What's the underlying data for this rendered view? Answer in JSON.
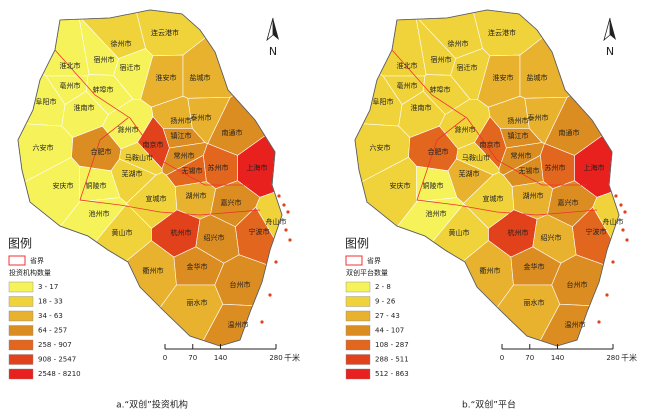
{
  "maps": [
    {
      "caption": "a.“双创”投资机构",
      "north": "N",
      "legend_heading": "图例",
      "boundary": "省界",
      "legend_title": "投资机构数量",
      "classes": [
        {
          "label": "3 - 17",
          "color": "#f6f25a"
        },
        {
          "label": "18 - 33",
          "color": "#f0d33a"
        },
        {
          "label": "34 - 63",
          "color": "#e8b12e"
        },
        {
          "label": "64 - 257",
          "color": "#dc8d22"
        },
        {
          "label": "258 - 907",
          "color": "#e2661e"
        },
        {
          "label": "908 - 2547",
          "color": "#e1411b"
        },
        {
          "label": "2548 - 8210",
          "color": "#e8201e"
        }
      ],
      "scale": {
        "ticks": [
          0,
          70,
          140,
          280
        ],
        "unit": "千米"
      },
      "cities": [
        "连云港市",
        "徐州市",
        "宿迁市",
        "宿州市",
        "淮北市",
        "亳州市",
        "蚌埠市",
        "淮安市",
        "盐城市",
        "阜阳市",
        "淮南市",
        "扬州市",
        "泰州市",
        "南通市",
        "滁州市",
        "六安市",
        "合肥市",
        "南京市",
        "镇江市",
        "常州市",
        "马鞍山市",
        "无锡市",
        "苏州市",
        "上海市",
        "芜湖市",
        "铜陵市",
        "宣城市",
        "安庆市",
        "池州市",
        "湖州市",
        "嘉兴市",
        "黄山市",
        "杭州市",
        "绍兴市",
        "宁波市",
        "舟山市",
        "衢州市",
        "金华市",
        "台州市",
        "丽水市",
        "温州市"
      ],
      "city_class": [
        1,
        1,
        0,
        0,
        0,
        0,
        0,
        2,
        2,
        0,
        0,
        2,
        2,
        3,
        0,
        0,
        3,
        5,
        3,
        3,
        1,
        4,
        4,
        6,
        1,
        0,
        1,
        0,
        0,
        2,
        3,
        1,
        5,
        3,
        4,
        1,
        2,
        3,
        3,
        2,
        3
      ]
    },
    {
      "caption": "b.“双创”平台",
      "north": "N",
      "legend_heading": "图例",
      "boundary": "省界",
      "legend_title": "双创平台数量",
      "classes": [
        {
          "label": "2 - 8",
          "color": "#f6f25a"
        },
        {
          "label": "9 - 26",
          "color": "#f0d33a"
        },
        {
          "label": "27 - 43",
          "color": "#e8b12e"
        },
        {
          "label": "44 - 107",
          "color": "#dc8d22"
        },
        {
          "label": "108 - 287",
          "color": "#e2661e"
        },
        {
          "label": "288 - 511",
          "color": "#e1411b"
        },
        {
          "label": "512 - 863",
          "color": "#e8201e"
        }
      ],
      "scale": {
        "ticks": [
          0,
          70,
          140,
          280
        ],
        "unit": "千米"
      },
      "cities": [
        "连云港市",
        "徐州市",
        "宿迁市",
        "宿州市",
        "淮北市",
        "亳州市",
        "蚌埠市",
        "淮安市",
        "盐城市",
        "阜阳市",
        "淮南市",
        "扬州市",
        "泰州市",
        "南通市",
        "滁州市",
        "六安市",
        "合肥市",
        "南京市",
        "镇江市",
        "常州市",
        "马鞍山市",
        "无锡市",
        "苏州市",
        "上海市",
        "芜湖市",
        "铜陵市",
        "宣城市",
        "安庆市",
        "池州市",
        "湖州市",
        "嘉兴市",
        "黄山市",
        "杭州市",
        "绍兴市",
        "宁波市",
        "舟山市",
        "衢州市",
        "金华市",
        "台州市",
        "丽水市",
        "温州市"
      ],
      "city_class": [
        1,
        1,
        1,
        1,
        1,
        1,
        1,
        2,
        2,
        1,
        1,
        2,
        2,
        3,
        1,
        1,
        4,
        4,
        3,
        3,
        1,
        3,
        4,
        6,
        2,
        0,
        1,
        1,
        0,
        2,
        3,
        1,
        5,
        2,
        4,
        1,
        2,
        3,
        3,
        2,
        3
      ]
    }
  ]
}
